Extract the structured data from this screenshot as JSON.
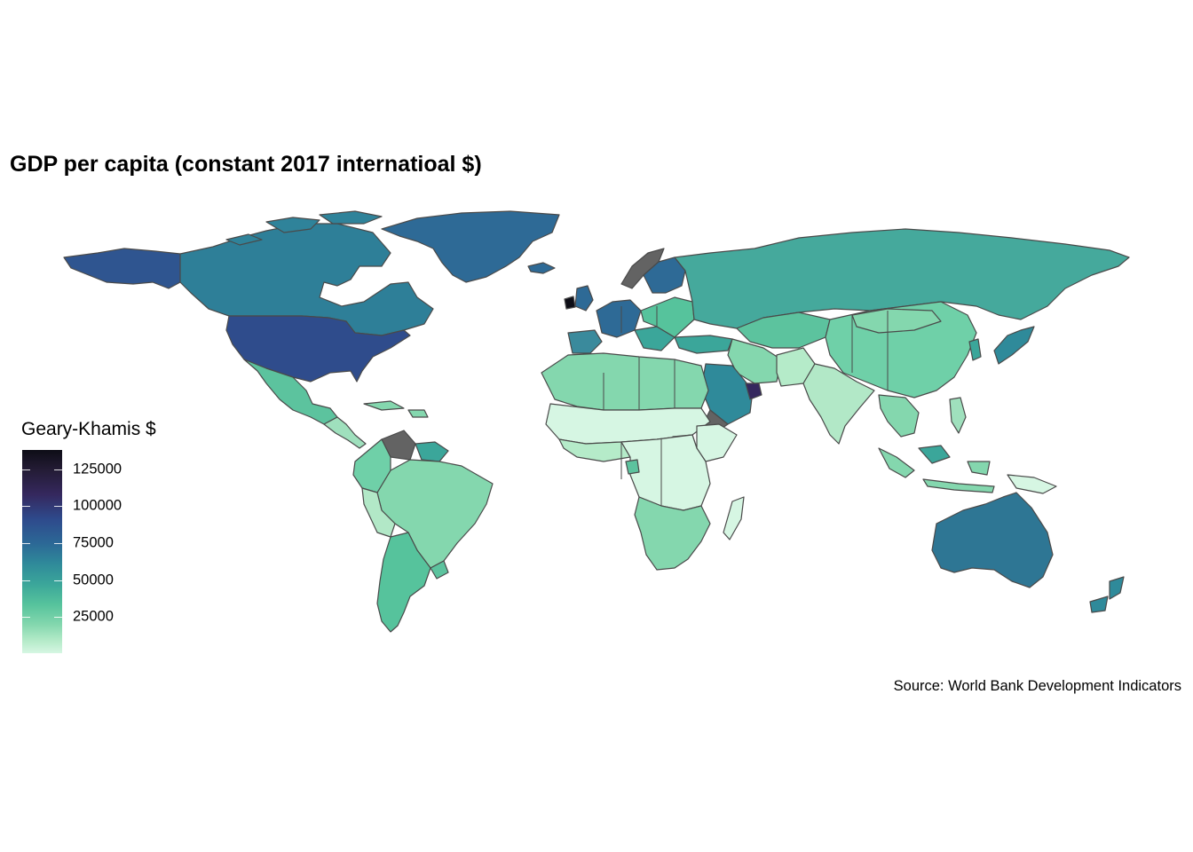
{
  "map": {
    "title": "GDP per capita (constant 2017 internatioal $)",
    "caption": "Source: World Bank Development Indicators",
    "legend": {
      "title": "Geary-Khamis $",
      "breaks": [
        "125000",
        "100000",
        "75000",
        "50000",
        "25000"
      ],
      "break_values": [
        125000,
        100000,
        75000,
        50000,
        25000
      ],
      "range": [
        500,
        138000
      ],
      "colors": [
        "#d6f6e3",
        "#84d7ae",
        "#3ba69a",
        "#2c6896",
        "#35285e",
        "#0d0d16"
      ],
      "na_color": "#636363"
    }
  }
}
